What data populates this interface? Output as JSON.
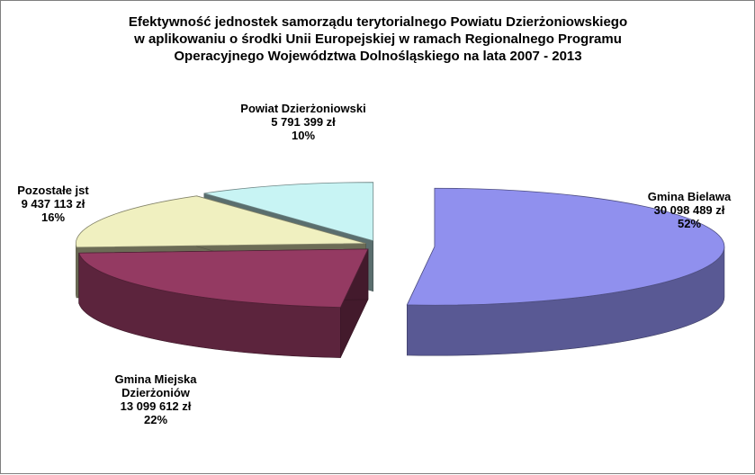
{
  "chart_data": {
    "type": "pie",
    "variant": "3d-exploded",
    "title": [
      "Efektywność jednostek samorządu terytorialnego Powiatu Dzierżoniowskiego",
      "w aplikowaniu o środki Unii Europejskiej w ramach Regionalnego Programu",
      "Operacyjnego Województwa Dolnośląskiego na lata 2007 - 2013"
    ],
    "slices": [
      {
        "name": "Gmina Bielawa",
        "value": 30098489,
        "percent": 52,
        "label": [
          "Gmina Bielawa",
          "30 098 489 zł",
          "52%"
        ],
        "color": "#9090ee"
      },
      {
        "name": "Gmina Miejska Dzierżoniów",
        "value": 13099612,
        "percent": 22,
        "label": [
          "Gmina Miejska",
          "Dzierżoniów",
          "13 099 612 zł",
          "22%"
        ],
        "color": "#943a62"
      },
      {
        "name": "Pozostałe jst",
        "value": 9437113,
        "percent": 16,
        "label": [
          "Pozostałe jst",
          "9 437 113 zł",
          "16%"
        ],
        "color": "#f0f0c0"
      },
      {
        "name": "Powiat Dzierżoniowski",
        "value": 5791399,
        "percent": 10,
        "label": [
          "Powiat Dzierżoniowski",
          "5 791 399 zł",
          "10%"
        ],
        "color": "#c8f4f4"
      }
    ],
    "legend": "none"
  }
}
